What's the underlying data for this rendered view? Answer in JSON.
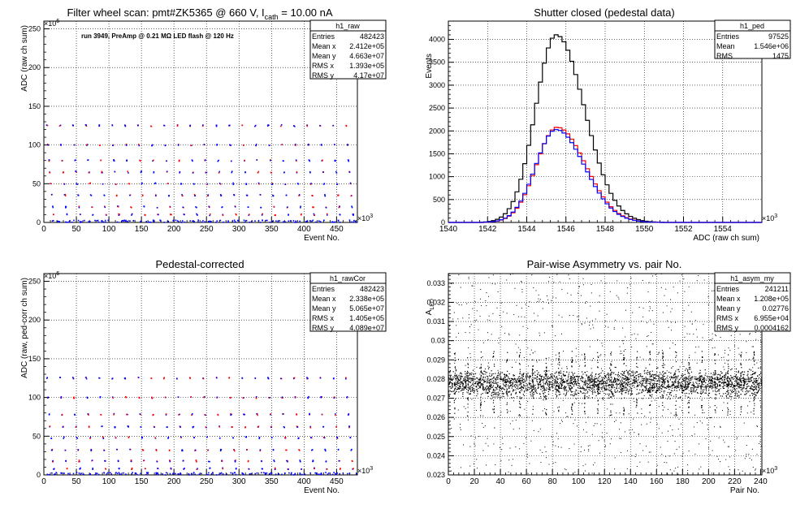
{
  "panels": [
    {
      "title": "Filter wheel scan: pmt#ZK5365 @   660 V, I",
      "title_sub": "cath",
      "title_tail": " = 10.00 nA",
      "annotation": "run 3949, PreAmp @ 0.21 MΩ LED flash @  120 Hz",
      "xlabel": "Event No.",
      "ylabel": "ADC (raw ch sum)",
      "x_exponent": "×10",
      "x_exp_power": "3",
      "y_exponent": "×10",
      "y_exp_power": "6",
      "stats": {
        "name": "h1_raw",
        "rows": [
          [
            "Entries",
            "482423"
          ],
          [
            "Mean x",
            "2.412e+05"
          ],
          [
            "Mean y",
            "4.663e+07"
          ],
          [
            "RMS x",
            "1.393e+05"
          ],
          [
            "RMS y",
            "4.17e+07"
          ]
        ]
      }
    },
    {
      "title": "Shutter closed (pedestal data)",
      "xlabel": "ADC (raw ch sum)",
      "ylabel": "Events",
      "x_exponent": "×10",
      "x_exp_power": "3",
      "stats": {
        "name": "h1_ped",
        "rows": [
          [
            "Entries",
            "97525"
          ],
          [
            "Mean",
            "1.546e+06"
          ],
          [
            "RMS",
            "1475"
          ]
        ]
      }
    },
    {
      "title": "Pedestal-corrected",
      "xlabel": "Event No.",
      "ylabel": "ADC (raw, ped-corr ch sum)",
      "x_exponent": "×10",
      "x_exp_power": "3",
      "y_exponent": "×10",
      "y_exp_power": "6",
      "stats": {
        "name": "h1_rawCor",
        "rows": [
          [
            "Entries",
            "482423"
          ],
          [
            "Mean x",
            "2.338e+05"
          ],
          [
            "Mean y",
            "5.065e+07"
          ],
          [
            "RMS x",
            "1.405e+05"
          ],
          [
            "RMS y",
            "4.089e+07"
          ]
        ]
      }
    },
    {
      "title": "Pair-wise Asymmetry vs. pair No.",
      "xlabel": "Pair No.",
      "ylabel": "A",
      "ylabel_sub": "LED",
      "x_exponent": "×10",
      "x_exp_power": "3",
      "stats": {
        "name": "h1_asym_my",
        "rows": [
          [
            "Entries",
            "241211"
          ],
          [
            "Mean x",
            "1.208e+05"
          ],
          [
            "Mean y",
            "0.02776"
          ],
          [
            "RMS x",
            "6.955e+04"
          ],
          [
            "RMS y",
            "0.0004162"
          ]
        ]
      }
    }
  ],
  "chart_data": [
    {
      "type": "scatter",
      "title": "Filter wheel scan: pmt#ZK5365 @   660 V, I_cath = 10.00 nA",
      "xlabel": "Event No.",
      "ylabel": "ADC (raw ch sum)",
      "x_unit": "10^3",
      "y_unit": "10^6",
      "xlim": [
        0,
        482
      ],
      "ylim": [
        0,
        260
      ],
      "xticks": [
        0,
        50,
        100,
        150,
        200,
        250,
        300,
        350,
        400,
        450
      ],
      "yticks": [
        0,
        50,
        100,
        150,
        200,
        250
      ],
      "grid": true,
      "legend": "stats box top-right",
      "step_period": 20,
      "step_start": 5,
      "levels": [
        125,
        100,
        80,
        65,
        50,
        35,
        20,
        10
      ],
      "series": [
        {
          "name": "",
          "color": "#0000ff"
        },
        {
          "name": "",
          "color": "#ff0000"
        }
      ]
    },
    {
      "type": "line",
      "title": "Shutter closed (pedestal data)",
      "xlabel": "ADC (raw ch sum)",
      "ylabel": "Events",
      "x_unit": "10^3",
      "xlim": [
        1540,
        1556
      ],
      "ylim": [
        0,
        4400
      ],
      "xticks": [
        1540,
        1542,
        1544,
        1546,
        1548,
        1550,
        1552,
        1554
      ],
      "yticks": [
        0,
        500,
        1000,
        1500,
        2000,
        2500,
        3000,
        3500,
        4000
      ],
      "grid": true,
      "legend": "stats box top-right",
      "series": [
        {
          "name": "",
          "color": "#000000",
          "peak": 4100,
          "mean": 1545.5,
          "sigma_left": 1.05,
          "sigma_right": 1.45
        },
        {
          "name": "",
          "color": "#ff0000",
          "peak": 2080,
          "mean": 1545.55,
          "sigma_left": 1.05,
          "sigma_right": 1.45
        },
        {
          "name": "",
          "color": "#0000ff",
          "peak": 2030,
          "mean": 1545.5,
          "sigma_left": 1.05,
          "sigma_right": 1.45
        }
      ]
    },
    {
      "type": "scatter",
      "title": "Pedestal-corrected",
      "xlabel": "Event No.",
      "ylabel": "ADC (raw, ped-corr ch sum)",
      "x_unit": "10^3",
      "y_unit": "10^6",
      "xlim": [
        0,
        482
      ],
      "ylim": [
        0,
        260
      ],
      "xticks": [
        0,
        50,
        100,
        150,
        200,
        250,
        300,
        350,
        400,
        450
      ],
      "yticks": [
        0,
        50,
        100,
        150,
        200,
        250
      ],
      "grid": true,
      "legend": "stats box top-right",
      "step_period": 20,
      "step_start": 5,
      "levels": [
        125,
        100,
        78,
        62,
        48,
        32,
        18,
        8
      ],
      "series": [
        {
          "name": "",
          "color": "#0000ff"
        },
        {
          "name": "",
          "color": "#ff0000"
        }
      ]
    },
    {
      "type": "scatter",
      "title": "Pair-wise Asymmetry vs. pair No.",
      "xlabel": "Pair No.",
      "ylabel": "A_LED",
      "x_unit": "10^3",
      "xlim": [
        0,
        241
      ],
      "ylim": [
        0.023,
        0.0335
      ],
      "xticks": [
        0,
        20,
        40,
        60,
        80,
        100,
        120,
        140,
        160,
        180,
        200,
        220,
        240
      ],
      "yticks": [
        0.023,
        0.024,
        0.025,
        0.026,
        0.027,
        0.028,
        0.029,
        0.03,
        0.031,
        0.032,
        0.033
      ],
      "grid": true,
      "legend": "stats box top-right",
      "band_center": 0.02776,
      "band_halfwidth": 0.0006,
      "spike_period": 10,
      "spike_start": 5,
      "series": [
        {
          "name": "",
          "color": "#000000"
        }
      ]
    }
  ]
}
